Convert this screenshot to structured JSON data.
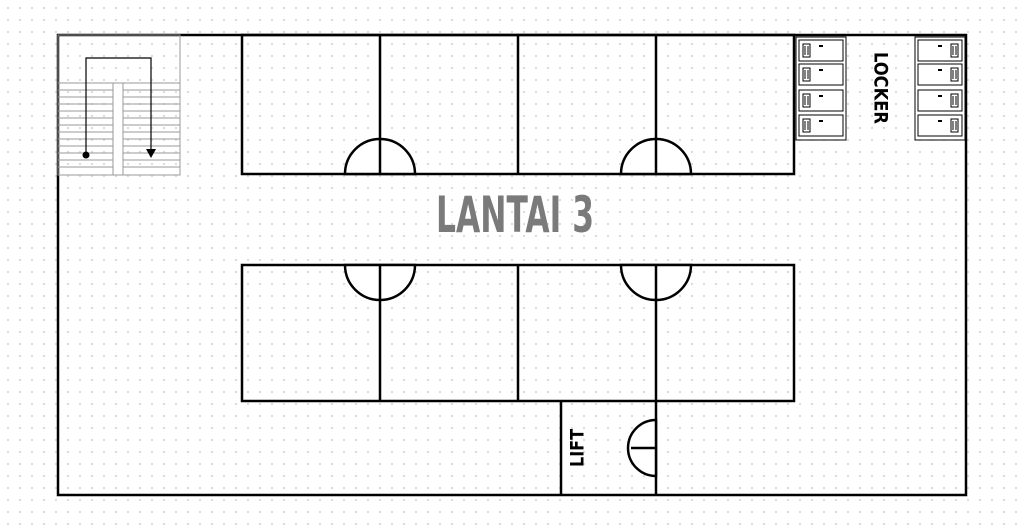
{
  "floor": {
    "title": "LANTAI 3"
  },
  "labels": {
    "locker": "LOCKER",
    "lift": "LIFT"
  },
  "colors": {
    "wall": "#000000",
    "title": "#7a7a7a",
    "stair_lines": "#9a9a9a",
    "background": "#ffffff",
    "grid_dots": "#d9d9d9"
  },
  "icons": {
    "stairs": "staircase-icon",
    "locker": "locker-icon",
    "door": "door-swing-icon"
  }
}
